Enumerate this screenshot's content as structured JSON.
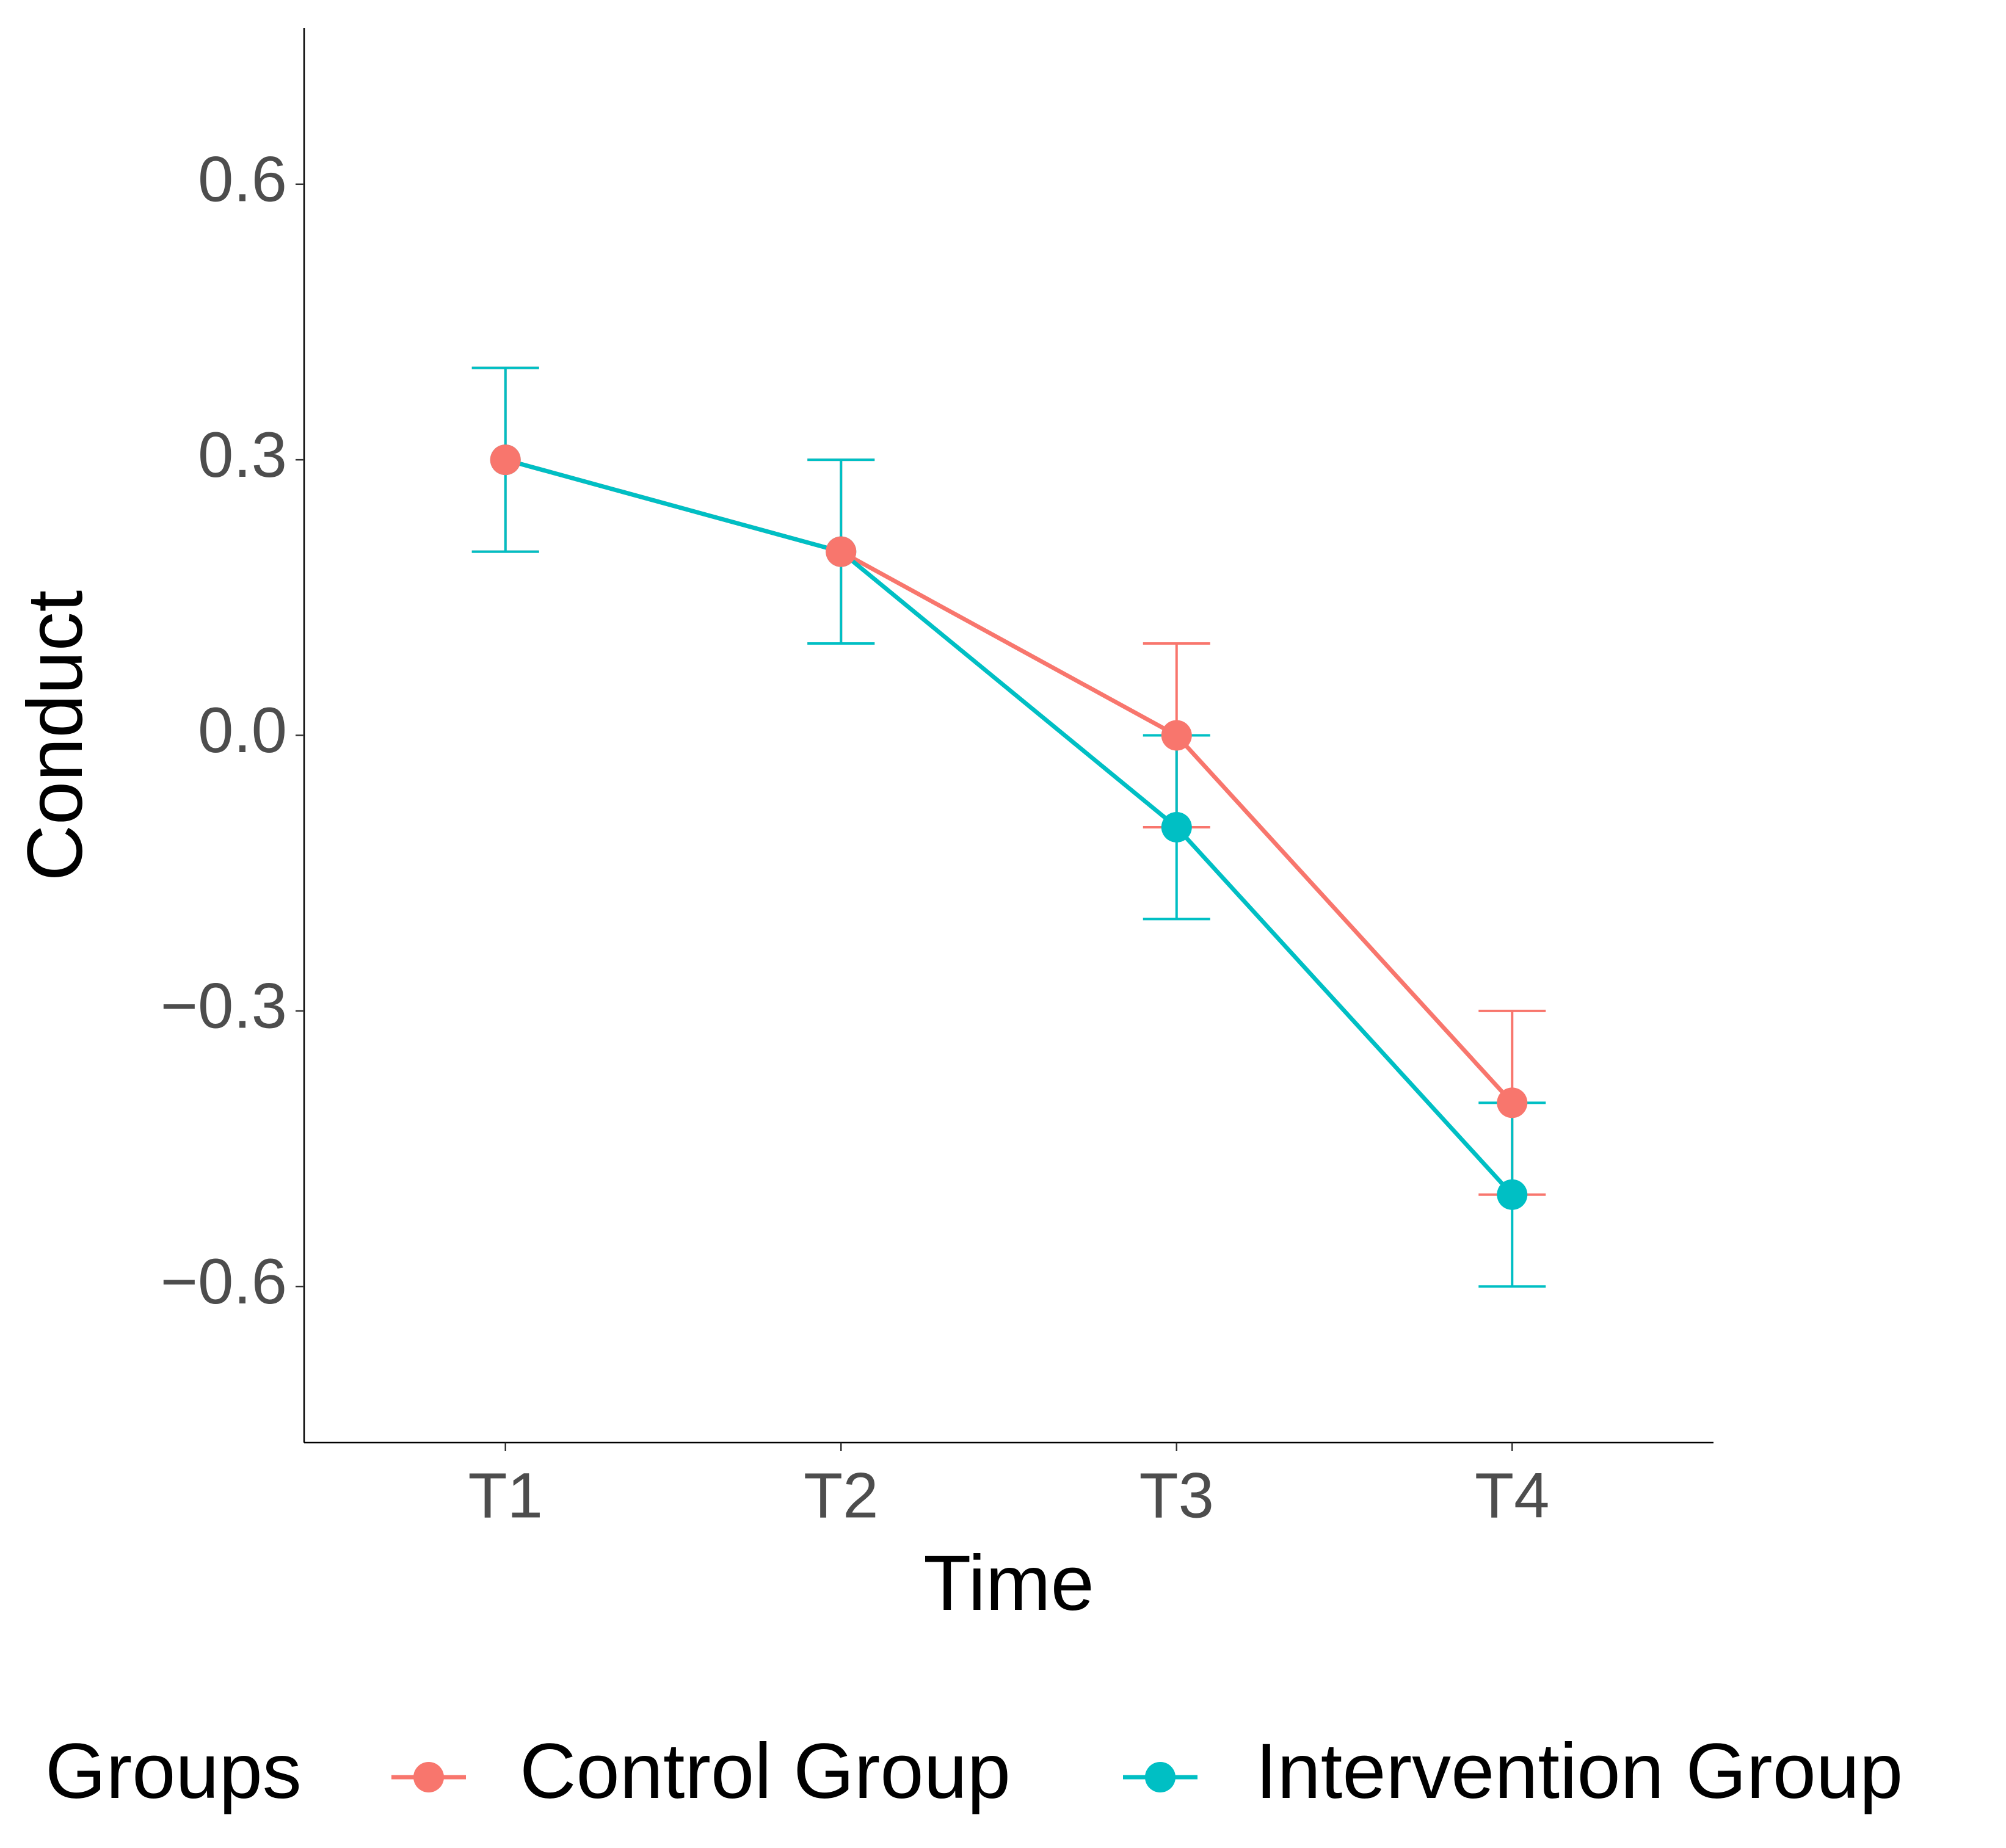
{
  "chart_data": {
    "type": "line",
    "x_label": "Time",
    "y_label": "Conduct",
    "categories": [
      "T1",
      "T2",
      "T3",
      "T4"
    ],
    "series": [
      {
        "name": "Control Group",
        "color": "#f8766d",
        "values": [
          0.3,
          0.2,
          0.0,
          -0.4
        ],
        "errors": [
          0.1,
          0.1,
          0.1,
          0.1
        ]
      },
      {
        "name": "Intervention Group",
        "color": "#00bfc4",
        "values": [
          0.3,
          0.2,
          -0.1,
          -0.5
        ],
        "errors": [
          0.1,
          0.1,
          0.1,
          0.1
        ]
      }
    ],
    "ylim": [
      -0.77,
      0.77
    ],
    "yticks": [
      {
        "value": -0.6,
        "label": "−0.6"
      },
      {
        "value": -0.3,
        "label": "−0.3"
      },
      {
        "value": 0,
        "label": "0.0"
      },
      0.3,
      0.6
    ],
    "legend_title": "Groups",
    "legend_position": "bottom",
    "grid": false
  }
}
